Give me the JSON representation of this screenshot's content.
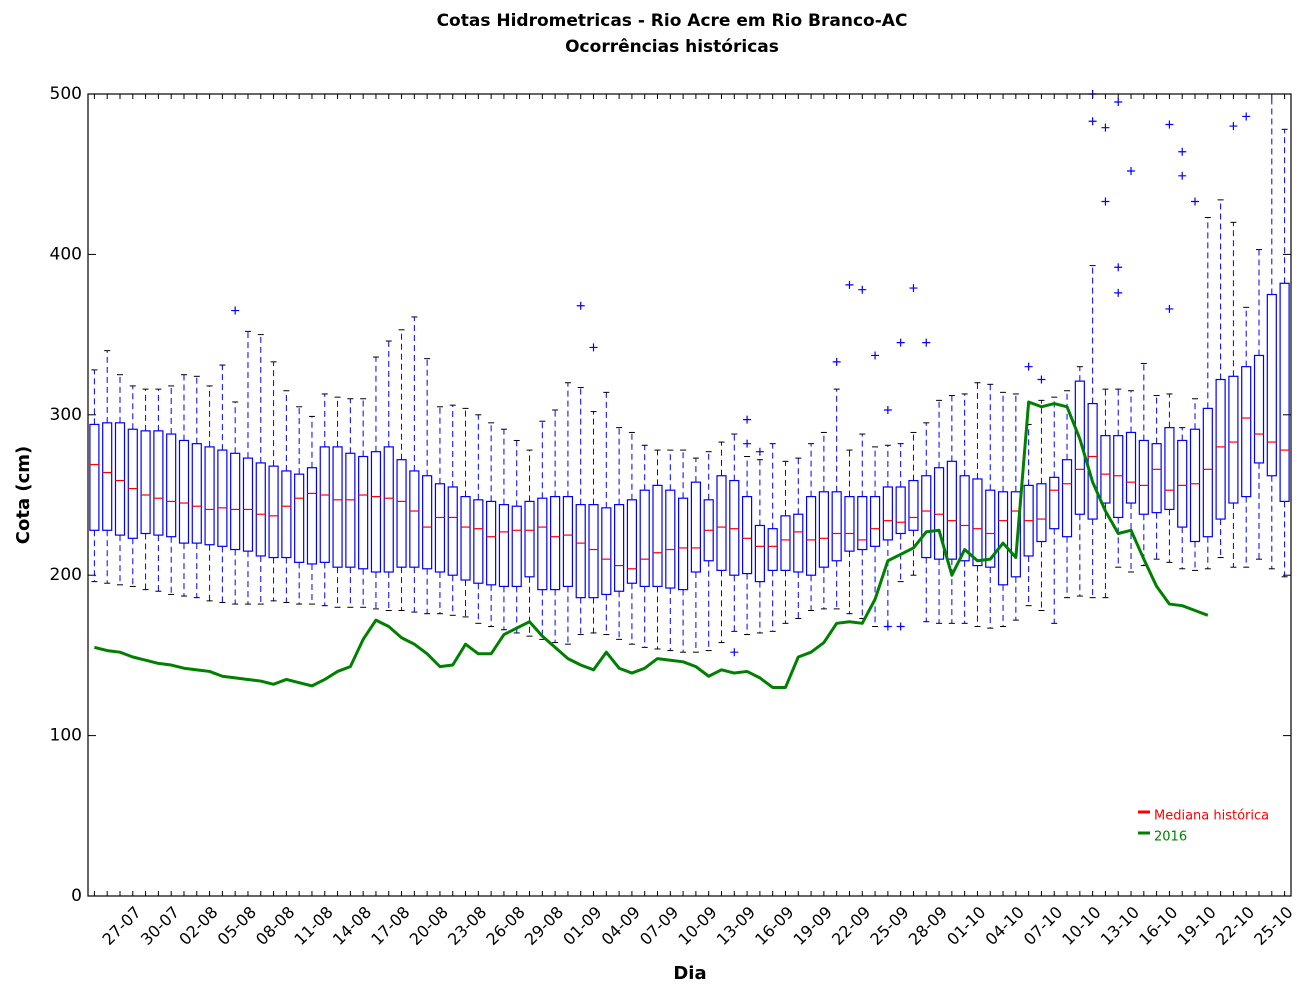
{
  "chart_data": {
    "type": "box",
    "title": "Cotas Hidrometricas - Rio Acre em Rio Branco-AC",
    "subtitle": "Ocorrências históricas",
    "xlabel": "Dia",
    "ylabel": "Cota (cm)",
    "categories": [
      null,
      null,
      null,
      "27-07",
      null,
      null,
      "30-07",
      null,
      null,
      "02-08",
      null,
      null,
      "05-08",
      null,
      null,
      "08-08",
      null,
      null,
      "11-08",
      null,
      null,
      "14-08",
      null,
      null,
      "17-08",
      null,
      null,
      "20-08",
      null,
      null,
      "23-08",
      null,
      null,
      "26-08",
      null,
      null,
      "29-08",
      null,
      null,
      "01-09",
      null,
      null,
      "04-09",
      null,
      null,
      "07-09",
      null,
      null,
      "10-09",
      null,
      null,
      "13-09",
      null,
      null,
      "16-09",
      null,
      null,
      "19-09",
      null,
      null,
      "22-09",
      null,
      null,
      "25-09",
      null,
      null,
      "28-09",
      null,
      null,
      "01-10",
      null,
      null,
      "04-10",
      null,
      null,
      "07-10",
      null,
      null,
      "10-10",
      null,
      null,
      "13-10",
      null,
      null,
      "16-10",
      null,
      null,
      "19-10",
      null,
      null,
      "22-10",
      null,
      null,
      "25-10"
    ],
    "xlim": [
      -0.5,
      93.5
    ],
    "ylim": [
      0,
      500
    ],
    "yticks": [
      0,
      100,
      200,
      300,
      400,
      500
    ],
    "legend": "lower right",
    "boxes": {
      "color": "#0000ff",
      "whisker_low": [
        196,
        195,
        194,
        193,
        191,
        190,
        188,
        187,
        186,
        184,
        183,
        182,
        182,
        182,
        184,
        183,
        182,
        182,
        181,
        180,
        180,
        180,
        179,
        178,
        178,
        177,
        176,
        176,
        175,
        174,
        170,
        168,
        166,
        164,
        162,
        160,
        158,
        157,
        163,
        164,
        163,
        160,
        157,
        155,
        154,
        153,
        152,
        152,
        153,
        158,
        165,
        163,
        164,
        165,
        170,
        173,
        178,
        179,
        179,
        176,
        173,
        168,
        168,
        196,
        200,
        171,
        170,
        170,
        170,
        168,
        167,
        168,
        172,
        181,
        178,
        170,
        186,
        187,
        186,
        186,
        205,
        202,
        206,
        210,
        208,
        204,
        203,
        204,
        211,
        205,
        205,
        210,
        204,
        199
      ],
      "q1": [
        228,
        228,
        225,
        223,
        226,
        225,
        224,
        220,
        220,
        219,
        218,
        216,
        215,
        212,
        211,
        211,
        208,
        207,
        208,
        205,
        205,
        204,
        202,
        202,
        205,
        205,
        204,
        202,
        200,
        197,
        195,
        194,
        193,
        193,
        199,
        191,
        191,
        193,
        186,
        186,
        188,
        190,
        195,
        193,
        193,
        192,
        191,
        202,
        209,
        203,
        200,
        201,
        196,
        203,
        203,
        202,
        200,
        205,
        209,
        215,
        216,
        218,
        222,
        226,
        228,
        211,
        210,
        210,
        209,
        206,
        205,
        194,
        199,
        212,
        221,
        229,
        224,
        238,
        235,
        245,
        236,
        245,
        238,
        239,
        241,
        230,
        221,
        224,
        235,
        245,
        249,
        270,
        262,
        246
      ],
      "q3": [
        294,
        295,
        295,
        291,
        290,
        290,
        288,
        284,
        282,
        280,
        278,
        276,
        273,
        270,
        268,
        265,
        263,
        267,
        280,
        280,
        276,
        274,
        277,
        280,
        272,
        265,
        262,
        257,
        255,
        249,
        247,
        246,
        244,
        243,
        246,
        248,
        249,
        249,
        244,
        244,
        242,
        244,
        247,
        253,
        256,
        253,
        248,
        258,
        247,
        262,
        259,
        249,
        231,
        229,
        237,
        238,
        249,
        252,
        252,
        249,
        249,
        249,
        255,
        255,
        259,
        262,
        267,
        271,
        262,
        260,
        253,
        252,
        252,
        256,
        257,
        261,
        272,
        321,
        307,
        287,
        287,
        289,
        284,
        282,
        292,
        284,
        291,
        304,
        322,
        324,
        330,
        337,
        375,
        382
      ],
      "whisker_high": [
        328,
        340,
        325,
        318,
        316,
        316,
        318,
        325,
        324,
        318,
        331,
        308,
        352,
        350,
        333,
        315,
        305,
        299,
        313,
        311,
        310,
        310,
        336,
        346,
        353,
        361,
        335,
        305,
        306,
        304,
        300,
        295,
        291,
        284,
        278,
        296,
        303,
        320,
        317,
        302,
        314,
        292,
        289,
        281,
        278,
        278,
        278,
        273,
        277,
        283,
        288,
        274,
        272,
        282,
        271,
        273,
        282,
        289,
        316,
        278,
        288,
        280,
        281,
        282,
        289,
        295,
        309,
        312,
        313,
        320,
        319,
        314,
        313,
        294,
        309,
        311,
        315,
        330,
        393,
        316,
        316,
        315,
        332,
        312,
        313,
        292,
        310,
        423,
        434,
        420,
        367,
        403,
        500,
        478
      ]
    },
    "outliers": {
      "color": "#0000ff",
      "x": [
        11,
        38,
        39,
        50,
        51,
        51,
        52,
        58,
        59,
        60,
        61,
        62,
        62,
        63,
        63,
        64,
        65,
        73,
        74,
        78,
        78,
        79,
        79,
        80,
        80,
        80,
        81,
        84,
        84,
        85,
        85,
        86,
        89,
        90
      ],
      "values": [
        365,
        368,
        342,
        152,
        297,
        282,
        277,
        333,
        381,
        378,
        337,
        303,
        168,
        168,
        345,
        379,
        345,
        330,
        322,
        483,
        500,
        479,
        433,
        495,
        392,
        376,
        452,
        481,
        366,
        464,
        449,
        433,
        480,
        486
      ]
    },
    "series": [
      {
        "name": "Mediana histórica",
        "color": "#ff0000",
        "values": [
          269,
          264,
          259,
          254,
          250,
          248,
          246,
          245,
          243,
          241,
          242,
          241,
          241,
          238,
          237,
          243,
          248,
          251,
          250,
          247,
          247,
          250,
          249,
          248,
          246,
          240,
          230,
          236,
          236,
          230,
          229,
          224,
          227,
          228,
          228,
          230,
          224,
          225,
          220,
          216,
          210,
          206,
          204,
          210,
          214,
          216,
          217,
          217,
          228,
          230,
          229,
          223,
          218,
          218,
          222,
          227,
          222,
          223,
          226,
          226,
          222,
          229,
          234,
          233,
          236,
          240,
          238,
          234,
          231,
          229,
          226,
          234,
          240,
          234,
          235,
          253,
          257,
          266,
          274,
          263,
          262,
          258,
          256,
          266,
          253,
          256,
          257,
          266,
          280,
          283,
          298,
          288,
          283,
          278
        ]
      },
      {
        "name": "2016",
        "color": "#008000",
        "values": [
          155,
          153,
          152,
          149,
          147,
          145,
          144,
          142,
          141,
          140,
          137,
          136,
          135,
          134,
          132,
          135,
          133,
          131,
          135,
          140,
          143,
          160,
          172,
          168,
          161,
          157,
          151,
          143,
          144,
          157,
          151,
          151,
          163,
          167,
          171,
          162,
          155,
          148,
          144,
          141,
          152,
          142,
          139,
          142,
          148,
          147,
          146,
          143,
          137,
          141,
          139,
          140,
          136,
          130,
          130,
          149,
          152,
          158,
          170,
          171,
          170,
          185,
          209,
          213,
          217,
          227,
          228,
          200,
          216,
          209,
          210,
          220,
          211,
          308,
          305,
          307,
          305,
          285,
          258,
          240,
          226,
          228,
          210,
          193,
          182,
          181,
          178,
          175,
          null,
          null,
          null,
          null,
          null,
          null
        ]
      }
    ]
  }
}
